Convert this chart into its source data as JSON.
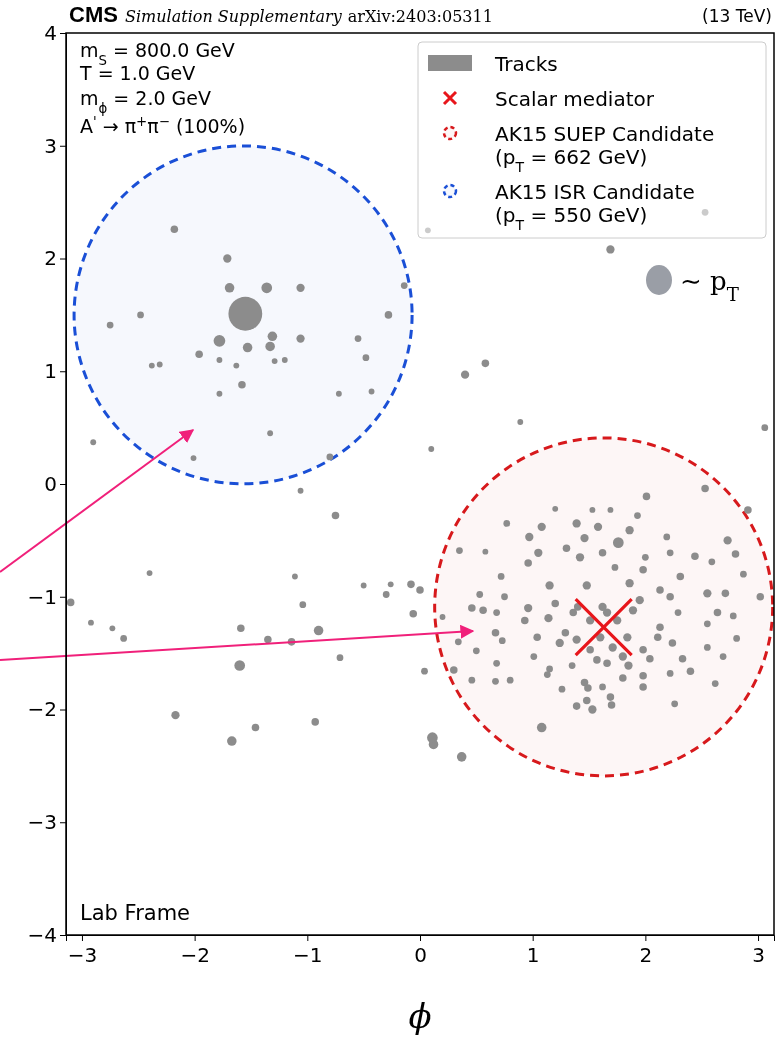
{
  "chart_data": {
    "type": "bubble",
    "title": "CMS",
    "subtitle": "Simulation Supplementary",
    "xlabel": "ϕ",
    "xlim": [
      -3.14159,
      3.14159
    ],
    "xticks": [
      -3,
      -2,
      -1,
      0,
      1,
      2,
      3
    ],
    "ylim": [
      -4,
      4
    ],
    "yticks": [
      4,
      3,
      2,
      1,
      0,
      -1,
      -2,
      -3,
      -4
    ],
    "grid": false,
    "legend": "top right",
    "annotations": [
      "arXiv:2403:05311",
      "(13 TeV)",
      "m$_{S}$ = 800.0 GeV",
      "T = 1.0 GeV",
      "m$_{ϕ}$ = 2.0 GeV",
      "A$^{'}$ → π$^{+}$π$^{−}$ (100%)",
      "Lab Frame",
      "∼ p$_{T}$"
    ],
    "series": [
      {
        "name": "Tracks",
        "color": "#8c8c8c",
        "x": [
          -1.55,
          -1.71,
          -2.18,
          -1.69,
          -1.36,
          -1.06,
          -1.78,
          -1.33,
          -1.31,
          -1.06,
          -1.53,
          -1.58,
          -2.48,
          -2.75,
          -0.14,
          -0.28,
          -0.55,
          -0.48,
          -0.72,
          -1.33,
          -1.78,
          -2.31,
          -2.38,
          -1.96,
          -1.29,
          -1.2,
          -1.78,
          -1.63,
          -2.9,
          -2.01,
          -0.8,
          -1.06,
          -0.75,
          0.1,
          -2.4,
          -1.11,
          -1.04,
          -0.9,
          -1.59,
          -1.35,
          -1.14,
          -1.6,
          -0.71,
          -2.17,
          -1.46,
          -1.67,
          -0.93,
          0.12,
          0.04,
          -0.06,
          -0.5,
          -0.26,
          -0.3,
          -0.08,
          0.0,
          -2.73,
          -2.63,
          -2.92,
          -3.1,
          1.69,
          2.53,
          0.07,
          0.4,
          0.58,
          3.06,
          0.89,
          -0.43,
          0.37,
          1.08,
          2.53,
          2.01,
          2.91,
          1.2,
          1.53,
          1.69,
          1.93,
          0.77,
          1.08,
          1.39,
          1.58,
          1.86,
          1.76,
          0.97,
          1.46,
          2.19,
          2.73,
          0.35,
          0.58,
          1.05,
          1.3,
          1.62,
          2.0,
          2.22,
          2.44,
          2.59,
          2.8,
          0.96,
          1.42,
          1.73,
          1.98,
          2.31,
          2.87,
          0.72,
          1.15,
          1.48,
          1.86,
          2.13,
          2.55,
          0.53,
          0.75,
          1.2,
          1.4,
          1.62,
          1.95,
          2.22,
          2.71,
          3.02,
          0.46,
          0.56,
          0.96,
          1.36,
          1.66,
          1.89,
          2.29,
          2.64,
          0.2,
          0.68,
          0.93,
          1.14,
          1.51,
          1.75,
          2.13,
          2.55,
          2.78,
          0.67,
          1.04,
          1.29,
          1.6,
          1.84,
          2.11,
          2.81,
          0.34,
          0.73,
          1.24,
          1.39,
          1.71,
          1.98,
          2.24,
          2.55,
          0.5,
          1.01,
          1.51,
          1.8,
          2.04,
          2.33,
          2.69,
          0.68,
          1.35,
          1.57,
          1.66,
          1.85,
          0.3,
          1.15,
          2.22,
          2.4,
          0.46,
          0.8,
          1.13,
          1.46,
          1.8,
          1.98,
          0.67,
          2.62,
          1.26,
          1.62,
          1.98,
          1.49,
          1.69,
          1.48,
          1.39,
          1.53,
          1.7,
          2.26,
          0.11
        ],
        "values": [
          1.51,
          2.0,
          2.26,
          1.74,
          1.74,
          1.74,
          1.27,
          1.22,
          1.31,
          1.29,
          1.21,
          0.88,
          1.5,
          1.41,
          1.76,
          1.5,
          1.29,
          1.12,
          0.8,
          0.45,
          0.8,
          1.06,
          1.05,
          1.15,
          1.09,
          1.1,
          1.1,
          1.05,
          0.37,
          0.23,
          0.24,
          -0.06,
          -0.28,
          0.31,
          -0.79,
          -0.82,
          -1.07,
          -1.3,
          -1.28,
          -1.38,
          -1.4,
          -1.61,
          -1.54,
          -2.05,
          -2.16,
          -2.28,
          -2.11,
          -2.31,
          -1.66,
          -1.15,
          -0.9,
          -0.89,
          -0.98,
          -0.89,
          -0.94,
          -1.28,
          -1.37,
          -1.23,
          -1.05,
          2.08,
          2.41,
          2.25,
          0.97,
          1.07,
          0.5,
          0.55,
          0.82,
          -2.42,
          -2.16,
          -0.04,
          -0.11,
          -0.23,
          -0.22,
          -0.23,
          -0.23,
          -0.28,
          -0.35,
          -0.38,
          -0.35,
          -0.38,
          -0.41,
          -0.52,
          -0.47,
          -0.48,
          -0.47,
          -0.5,
          -0.59,
          -0.6,
          -0.61,
          -0.57,
          -0.61,
          -0.65,
          -0.61,
          -0.64,
          -0.69,
          -0.62,
          -0.7,
          -0.65,
          -0.74,
          -0.76,
          -0.82,
          -0.8,
          -0.82,
          -0.9,
          -0.9,
          -0.88,
          -0.94,
          -0.97,
          -0.98,
          -1.0,
          -1.06,
          -1.09,
          -1.09,
          -1.03,
          -1.0,
          -0.97,
          -1.0,
          -1.1,
          -1.12,
          -1.1,
          -1.14,
          -1.14,
          -1.12,
          -1.14,
          -1.14,
          -1.18,
          -1.14,
          -1.21,
          -1.19,
          -1.21,
          -1.21,
          -1.27,
          -1.24,
          -1.17,
          -1.32,
          -1.36,
          -1.32,
          -1.36,
          -1.36,
          -1.36,
          -1.37,
          -1.4,
          -1.39,
          -1.41,
          -1.38,
          -1.45,
          -1.47,
          -1.41,
          -1.45,
          -1.48,
          -1.53,
          -1.47,
          -1.53,
          -1.55,
          -1.55,
          -1.53,
          -1.59,
          -1.61,
          -1.56,
          -1.59,
          -1.61,
          -1.65,
          -1.64,
          -1.68,
          -1.66,
          -1.74,
          -1.74,
          -1.69,
          -1.76,
          -1.72,
          -1.7,
          -1.75,
          -1.77,
          -1.82,
          -1.8,
          -1.8,
          -1.81,
          -1.89,
          -1.92,
          -1.97,
          -2.0,
          -1.96,
          -1.95,
          -2.25
        ],
        "sizes": [
          0.01,
          0.0006,
          0.0005,
          0.0008,
          0.001,
          0.0006,
          0.0012,
          0.0008,
          0.0008,
          0.0006,
          0.0008,
          0.0005,
          0.0004,
          0.0004,
          0.0004,
          0.0005,
          0.0004,
          0.0004,
          0.0003,
          0.0003,
          0.0003,
          0.0003,
          0.0003,
          0.0005,
          0.0003,
          0.0003,
          0.0003,
          0.0003,
          0.0003,
          0.0003,
          0.0004,
          0.0003,
          0.0005,
          0.0003,
          0.0003,
          0.0003,
          0.0004,
          0.0008,
          0.0005,
          0.0005,
          0.0005,
          0.001,
          0.0004,
          0.0006,
          0.0005,
          0.0008,
          0.0005,
          0.0008,
          0.0004,
          0.0005,
          0.0003,
          0.0003,
          0.0004,
          0.0005,
          0.0005,
          0.0003,
          0.0004,
          0.0003,
          0.0005,
          0.0006,
          0.0004,
          0.0003,
          0.0006,
          0.0005,
          0.0004,
          0.0003,
          0.0003,
          0.0008,
          0.0008,
          0.0005,
          0.0005,
          0.0005,
          0.0003,
          0.0003,
          0.0003,
          0.0004,
          0.0004,
          0.0006,
          0.0006,
          0.0006,
          0.0006,
          0.001,
          0.0006,
          0.0006,
          0.0004,
          0.0006,
          0.0004,
          0.0003,
          0.0006,
          0.0005,
          0.0005,
          0.0004,
          0.0004,
          0.0005,
          0.0004,
          0.0005,
          0.0005,
          0.0006,
          0.0004,
          0.0005,
          0.0005,
          0.0004,
          0.0004,
          0.0006,
          0.0006,
          0.0006,
          0.0005,
          0.0006,
          0.0004,
          0.0004,
          0.0005,
          0.0005,
          0.0006,
          0.0006,
          0.0005,
          0.0005,
          0.0005,
          0.0005,
          0.0005,
          0.0006,
          0.0005,
          0.0006,
          0.0006,
          0.0004,
          0.0005,
          0.0003,
          0.0004,
          0.0005,
          0.0006,
          0.0006,
          0.0006,
          0.0005,
          0.0004,
          0.0004,
          0.0005,
          0.0005,
          0.0005,
          0.0006,
          0.0006,
          0.0005,
          0.0004,
          0.0004,
          0.0004,
          0.0006,
          0.0006,
          0.0006,
          0.0005,
          0.0005,
          0.0004,
          0.0004,
          0.0004,
          0.0005,
          0.0006,
          0.0005,
          0.0005,
          0.0004,
          0.0004,
          0.0004,
          0.0005,
          0.0005,
          0.0006,
          0.0005,
          0.0004,
          0.0004,
          0.0005,
          0.0004,
          0.0004,
          0.0004,
          0.0005,
          0.0005,
          0.0005,
          0.0004,
          0.0004,
          0.0004,
          0.0004,
          0.0005,
          0.0005,
          0.0005,
          0.0005,
          0.0005,
          0.0006,
          0.0005,
          0.0004,
          0.001
        ]
      },
      {
        "name": "Scalar mediator",
        "type": "scatter",
        "marker": "cross",
        "color": "#e8161b",
        "x": [
          1.63
        ],
        "values": [
          -1.27
        ]
      },
      {
        "name": "AK15 SUEP Candidate\n(p$_{T}$ = 662 GeV)",
        "line_style": "dashed",
        "color": "#d7191c",
        "x": [
          1.63
        ],
        "values": [
          -1.09
        ],
        "sizes": [
          1
        ]
      },
      {
        "name": "AK15 ISR Candidate\n(p$_{T}$ = 550 GeV)",
        "line_style": "dashed",
        "color": "#1a4fd6",
        "x": [
          -1.57
        ],
        "values": [
          1.5
        ],
        "sizes": [
          1
        ]
      }
    ]
  }
}
